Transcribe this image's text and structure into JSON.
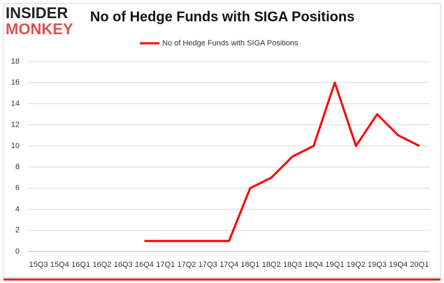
{
  "logo": {
    "top": "INSIDER",
    "bottom": "MONKEY"
  },
  "chart_data": {
    "type": "line",
    "title": "No of Hedge Funds with SIGA Positions",
    "categories": [
      "15Q3",
      "15Q4",
      "16Q1",
      "16Q2",
      "16Q3",
      "16Q4",
      "17Q1",
      "17Q2",
      "17Q3",
      "17Q4",
      "18Q1",
      "18Q2",
      "18Q3",
      "18Q4",
      "19Q1",
      "19Q2",
      "19Q3",
      "19Q4",
      "20Q1"
    ],
    "series": [
      {
        "name": "No of Hedge Funds with SIGA Positions",
        "color": "#ff0000",
        "values": [
          null,
          null,
          null,
          null,
          null,
          1,
          1,
          1,
          1,
          1,
          6,
          7,
          9,
          10,
          16,
          10,
          13,
          11,
          10
        ]
      }
    ],
    "ylim": [
      0,
      18
    ],
    "yticks": [
      0,
      2,
      4,
      6,
      8,
      10,
      12,
      14,
      16,
      18
    ],
    "grid": true,
    "legend": "top"
  }
}
